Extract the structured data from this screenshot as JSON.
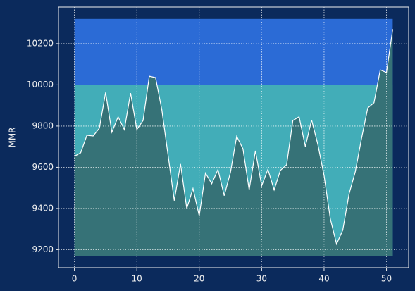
{
  "chart_data": {
    "type": "area",
    "ylabel": "MMR",
    "x": [
      0,
      1,
      2,
      3,
      4,
      5,
      6,
      7,
      8,
      9,
      10,
      11,
      12,
      13,
      14,
      15,
      16,
      17,
      18,
      19,
      20,
      21,
      22,
      23,
      24,
      25,
      26,
      27,
      28,
      29,
      30,
      31,
      32,
      33,
      34,
      35,
      36,
      37,
      38,
      39,
      40,
      41,
      42,
      43,
      44,
      45,
      46,
      47,
      48,
      49,
      50,
      51
    ],
    "series": [
      {
        "color": "#ffffff",
        "fill": "#367277",
        "values": [
          9653,
          9670,
          9755,
          9752,
          9790,
          9963,
          9770,
          9845,
          9783,
          9960,
          9783,
          9827,
          10042,
          10035,
          9880,
          9660,
          9438,
          9616,
          9400,
          9497,
          9364,
          9572,
          9520,
          9589,
          9462,
          9575,
          9750,
          9690,
          9490,
          9680,
          9510,
          9590,
          9490,
          9585,
          9612,
          9827,
          9845,
          9700,
          9830,
          9711,
          9560,
          9350,
          9227,
          9295,
          9470,
          9578,
          9740,
          9888,
          9913,
          10073,
          10060,
          10270
        ]
      }
    ],
    "bands": [
      {
        "from": 9170,
        "to": 10000,
        "color": "#42adb8"
      },
      {
        "from": 10000,
        "to": 10320,
        "color": "#2b6bd6"
      }
    ],
    "xlim": [
      -2.55,
      53.55
    ],
    "xticks": [
      0,
      10,
      20,
      30,
      40,
      50
    ],
    "ylim": [
      9112.5,
      10377.5
    ],
    "yticks": [
      9200,
      9400,
      9600,
      9800,
      10000,
      10200
    ],
    "grid": true
  }
}
